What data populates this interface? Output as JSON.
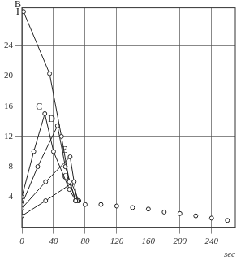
{
  "chart_data": {
    "type": "line",
    "y_label": "I",
    "x_label": "sec",
    "xlim": [
      0,
      270
    ],
    "xticks": [
      0,
      40,
      80,
      120,
      160,
      200,
      240
    ],
    "ylim": [
      0,
      29
    ],
    "yticks": [
      4,
      8,
      12,
      16,
      20,
      24
    ],
    "grid": true,
    "series": [
      {
        "name": "B",
        "color": "#222222",
        "marker": "circle",
        "x": [
          2,
          35,
          50,
          60,
          68
        ],
        "values": [
          28.5,
          20.3,
          12,
          6,
          3.5
        ]
      },
      {
        "name": "C",
        "color": "#222222",
        "marker": "circle",
        "x": [
          0,
          15,
          29,
          40,
          60,
          68
        ],
        "values": [
          4,
          10,
          15,
          10,
          5,
          3.5
        ]
      },
      {
        "name": "D",
        "color": "#222222",
        "marker": "circle",
        "x": [
          0,
          20,
          45,
          55,
          68
        ],
        "values": [
          3,
          8,
          13.4,
          8,
          3.5
        ]
      },
      {
        "name": "E",
        "color": "#222222",
        "marker": "circle",
        "x": [
          0,
          30,
          61,
          66,
          70
        ],
        "values": [
          2.5,
          6,
          9.3,
          6,
          3.5
        ]
      },
      {
        "name": "G",
        "color": "#222222",
        "marker": "circle",
        "x": [
          0,
          30,
          63,
          72
        ],
        "values": [
          1.5,
          3.5,
          5.8,
          3.5
        ]
      },
      {
        "type": "scatter",
        "color": "#222222",
        "marker": "circle",
        "x": [
          80,
          100,
          120,
          140,
          160,
          180,
          200,
          220,
          240,
          260
        ],
        "values": [
          3,
          3,
          2.8,
          2.6,
          2.4,
          2,
          1.8,
          1.5,
          1.2,
          0.9
        ]
      }
    ]
  }
}
